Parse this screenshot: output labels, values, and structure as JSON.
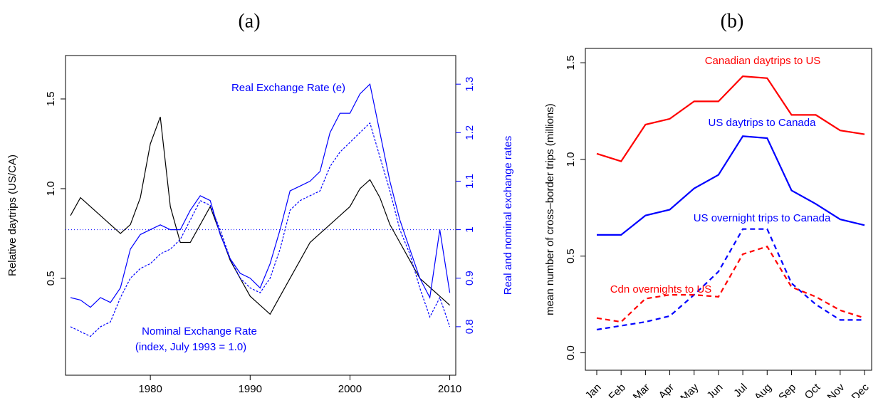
{
  "chart_data": [
    {
      "type": "line",
      "panel_label": "(a)",
      "y_label": "Relative daytrips (US/CA)",
      "y2_label": "Real and nominal exchange rates",
      "annotation": "(index, July 1993 = 1.0)",
      "x": [
        1972,
        1973,
        1974,
        1975,
        1976,
        1977,
        1978,
        1979,
        1980,
        1981,
        1982,
        1983,
        1984,
        1985,
        1986,
        1987,
        1988,
        1989,
        1990,
        1991,
        1992,
        1993,
        1994,
        1995,
        1996,
        1997,
        1998,
        1999,
        2000,
        2001,
        2002,
        2003,
        2004,
        2005,
        2006,
        2007,
        2008,
        2009,
        2010
      ],
      "xlim": [
        1971.5,
        2010.6
      ],
      "xticks": [
        1980,
        1990,
        2000,
        2010
      ],
      "ylim": [
        -0.04,
        1.742
      ],
      "yticks": [
        0.5,
        {
          "value": 1,
          "label": "1.0"
        },
        1.5
      ],
      "y2lim": [
        0.7,
        1.359
      ],
      "y2ticks": [
        0.8,
        0.9,
        1,
        1.1,
        1.2,
        1.3
      ],
      "y2_refline": 1,
      "series": [
        {
          "color": "#000000",
          "dash": false,
          "values": [
            0.85,
            0.95,
            0.9,
            0.85,
            0.8,
            0.75,
            0.8,
            0.95,
            1.25,
            1.4,
            0.9,
            0.7,
            0.7,
            0.8,
            0.9,
            0.75,
            0.6,
            0.5,
            0.4,
            0.35,
            0.3,
            0.4,
            0.5,
            0.6,
            0.7,
            0.75,
            0.8,
            0.85,
            0.9,
            1.0,
            1.05,
            0.95,
            0.8,
            0.7,
            0.6,
            0.5,
            0.45,
            0.4,
            0.35
          ]
        },
        {
          "name": "Real Exchange Rate (e)",
          "color": "#0000ff",
          "dash": false,
          "axis": "y2",
          "values": [
            0.86,
            0.855,
            0.84,
            0.86,
            0.85,
            0.88,
            0.96,
            0.99,
            1.0,
            1.01,
            1.0,
            1.0,
            1.04,
            1.07,
            1.06,
            0.99,
            0.94,
            0.91,
            0.9,
            0.88,
            0.93,
            1.0,
            1.08,
            1.09,
            1.1,
            1.12,
            1.2,
            1.24,
            1.24,
            1.28,
            1.3,
            1.2,
            1.1,
            1.02,
            0.96,
            0.9,
            0.86,
            1.0,
            0.87
          ]
        },
        {
          "name": "Nominal Exchange Rate",
          "color": "#0000ff",
          "dash": true,
          "axis": "y2",
          "values": [
            0.8,
            0.79,
            0.78,
            0.8,
            0.81,
            0.86,
            0.9,
            0.92,
            0.93,
            0.95,
            0.96,
            0.98,
            1.02,
            1.06,
            1.05,
            1.0,
            0.94,
            0.9,
            0.88,
            0.87,
            0.9,
            0.96,
            1.04,
            1.06,
            1.07,
            1.08,
            1.13,
            1.16,
            1.18,
            1.2,
            1.22,
            1.15,
            1.08,
            1.0,
            0.95,
            0.88,
            0.82,
            0.86,
            0.8
          ]
        }
      ]
    },
    {
      "type": "line",
      "panel_label": "(b)",
      "y_label": "mean number of cross–border trips (millions)",
      "categories": [
        "Jan",
        "Feb",
        "Mar",
        "Apr",
        "May",
        "Jun",
        "Jul",
        "Aug",
        "Sep",
        "Oct",
        "Nov",
        "Dec"
      ],
      "ylim": [
        -0.09,
        1.574
      ],
      "yticks": [
        {
          "value": 0,
          "label": "0.0"
        },
        0.5,
        {
          "value": 1,
          "label": "1.0"
        },
        1.5
      ],
      "series": [
        {
          "name": "Canadian daytrips to US",
          "color": "#ff0000",
          "dash": false,
          "values": [
            1.03,
            0.99,
            1.18,
            1.21,
            1.3,
            1.3,
            1.43,
            1.42,
            1.23,
            1.23,
            1.15,
            1.13
          ]
        },
        {
          "name": "US daytrips to Canada",
          "color": "#0000ff",
          "dash": false,
          "values": [
            0.61,
            0.61,
            0.71,
            0.74,
            0.85,
            0.92,
            1.12,
            1.11,
            0.84,
            0.77,
            0.69,
            0.66
          ]
        },
        {
          "name": "US overnight trips to Canada",
          "color": "#0000ff",
          "dash": true,
          "values": [
            0.12,
            0.14,
            0.16,
            0.19,
            0.3,
            0.42,
            0.64,
            0.64,
            0.36,
            0.25,
            0.17,
            0.17
          ]
        },
        {
          "name": "Cdn overnights to US",
          "color": "#ff0000",
          "dash": true,
          "values": [
            0.18,
            0.16,
            0.28,
            0.3,
            0.3,
            0.29,
            0.51,
            0.55,
            0.34,
            0.29,
            0.22,
            0.18
          ]
        }
      ]
    }
  ]
}
